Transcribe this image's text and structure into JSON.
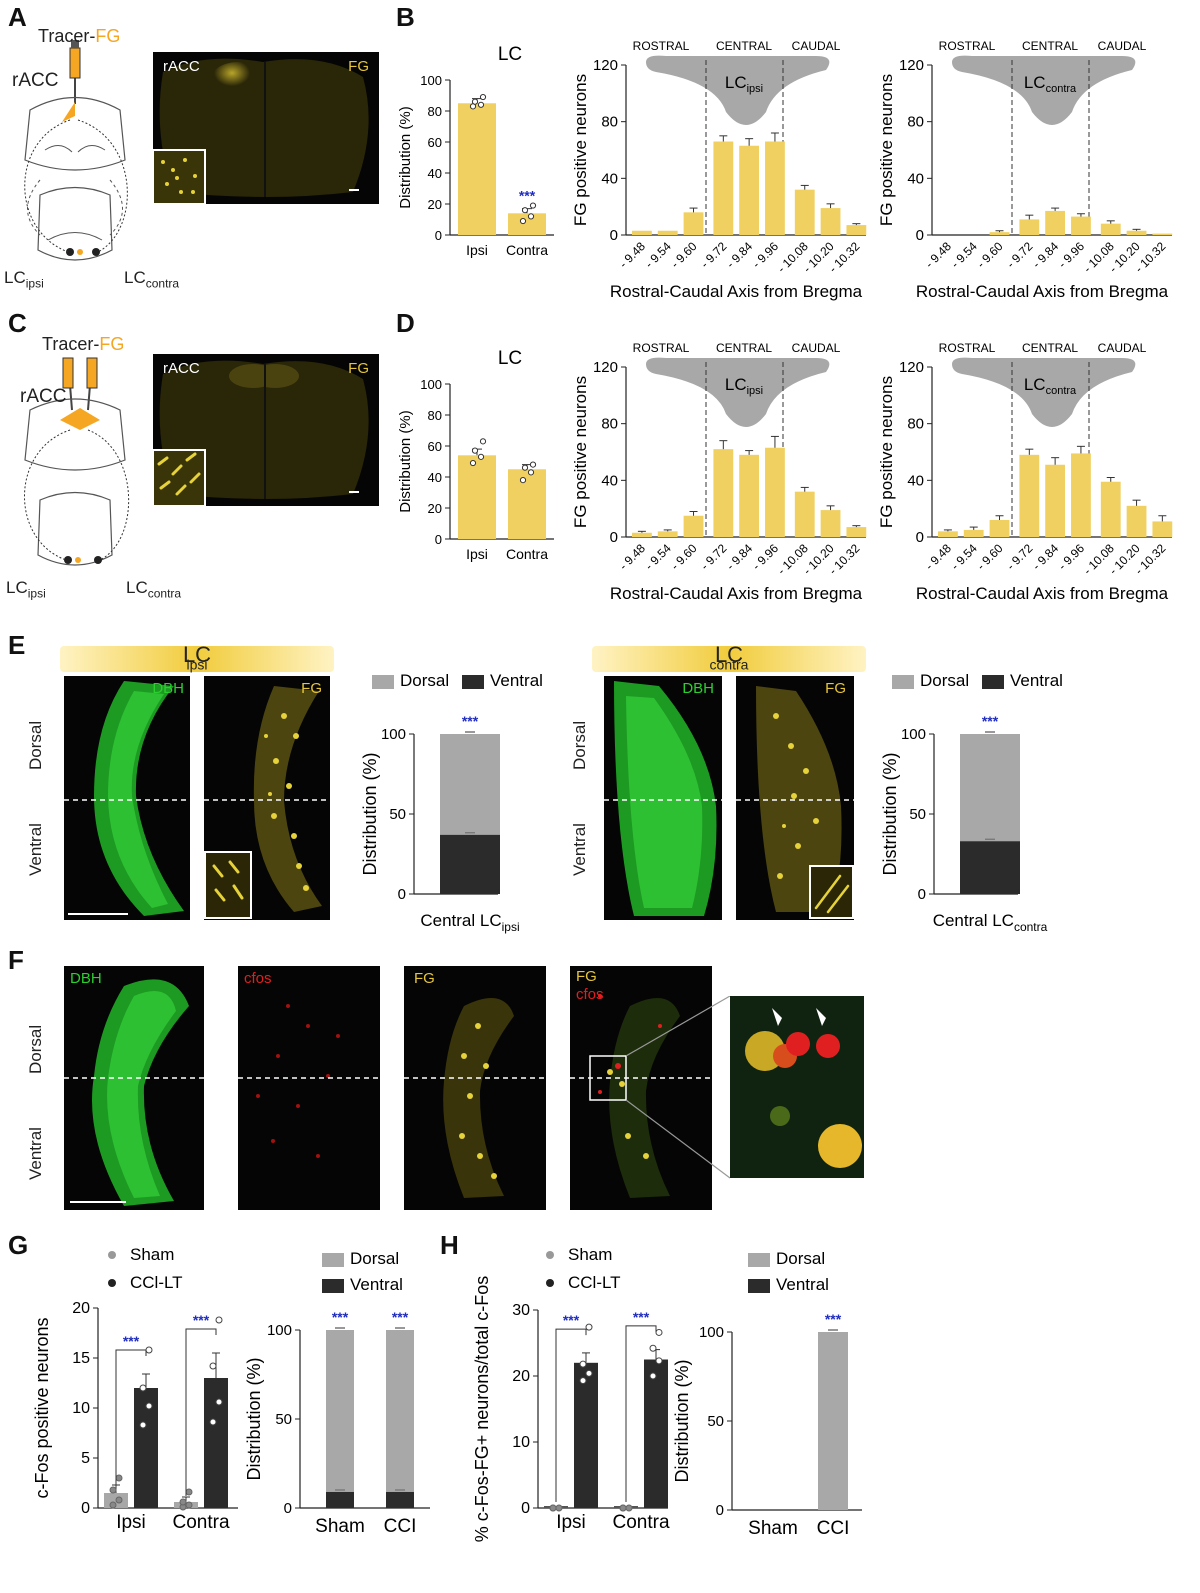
{
  "panels": {
    "A": "A",
    "B": "B",
    "C": "C",
    "D": "D",
    "E": "E",
    "F": "F",
    "G": "G",
    "H": "H"
  },
  "colors": {
    "bar_yellow": "#f0d060",
    "dark": "#2b2b2b",
    "gray": "#a8a8a8",
    "sig_blue": "#1f2cc0",
    "fg_yellow": "#e6d23a",
    "dbh_green": "#27c22a",
    "cfos_red": "#e02020",
    "tracer_orange": "#f5a623"
  },
  "schematic_A": {
    "tracer_word": "Tracer-",
    "tracer_fg": "FG",
    "region": "rACC",
    "lc_ipsi_main": "LC",
    "lc_ipsi_sub": "ipsi",
    "lc_contra_main": "LC",
    "lc_contra_sub": "contra"
  },
  "schematic_C": {
    "tracer_word": "Tracer-",
    "tracer_fg": "FG",
    "region": "rACC",
    "lc_ipsi_main": "LC",
    "lc_ipsi_sub": "ipsi",
    "lc_contra_main": "LC",
    "lc_contra_sub": "contra"
  },
  "micro_A": {
    "left": "rACC",
    "right": "FG"
  },
  "micro_C": {
    "left": "rACC",
    "right": "FG"
  },
  "micro_E": {
    "ipsi_header_main": "LC",
    "ipsi_header_sub": "ipsi",
    "contra_header_main": "LC",
    "contra_header_sub": "contra",
    "dbh": "DBH",
    "fg": "FG",
    "dorsal": "Dorsal",
    "ventral": "Ventral"
  },
  "micro_F": {
    "dbh": "DBH",
    "cfos": "cfos",
    "fg": "FG",
    "merge_fg": "FG",
    "merge_cfos": "cfos",
    "dorsal": "Dorsal",
    "ventral": "Ventral"
  },
  "chart_data": [
    {
      "id": "B_dist",
      "type": "bar",
      "title": "LC",
      "categories": [
        "Ipsi",
        "Contra"
      ],
      "values": [
        85,
        14
      ],
      "errors": [
        3,
        3
      ],
      "points": [
        [
          83,
          84,
          86,
          89
        ],
        [
          9,
          12,
          16,
          19
        ]
      ],
      "ylabel": "Distribution (%)",
      "ylim": [
        0,
        100
      ],
      "yticks": [
        0,
        20,
        40,
        60,
        80,
        100
      ],
      "significance": "***"
    },
    {
      "id": "B_ipsi",
      "type": "bar",
      "categories": [
        "- 9.48",
        "- 9.54",
        "- 9.60",
        "- 9.72",
        "- 9.84",
        "- 9.96",
        "- 10.08",
        "- 10.20",
        "- 10.32"
      ],
      "values": [
        3,
        3,
        16,
        66,
        63,
        66,
        32,
        19,
        7
      ],
      "errors": [
        0,
        0,
        3,
        4,
        5,
        6,
        3,
        3,
        1
      ],
      "ylabel": "FG positive neurons",
      "xlabel": "Rostral-Caudal Axis from Bregma",
      "ylim": [
        0,
        120
      ],
      "yticks": [
        0,
        40,
        80,
        120
      ],
      "regions": [
        "ROSTRAL",
        "CENTRAL",
        "CAUDAL"
      ],
      "lc_main": "LC",
      "lc_sub": "ipsi"
    },
    {
      "id": "B_contra",
      "type": "bar",
      "categories": [
        "- 9.48",
        "- 9.54",
        "- 9.60",
        "- 9.72",
        "- 9.84",
        "- 9.96",
        "- 10.08",
        "- 10.20",
        "- 10.32"
      ],
      "values": [
        0,
        0,
        2,
        11,
        17,
        13,
        8,
        3,
        1
      ],
      "errors": [
        0,
        0,
        1,
        3,
        2,
        2,
        2,
        1,
        0
      ],
      "ylabel": "FG positive neurons",
      "xlabel": "Rostral-Caudal Axis from Bregma",
      "ylim": [
        0,
        120
      ],
      "yticks": [
        0,
        40,
        80,
        120
      ],
      "regions": [
        "ROSTRAL",
        "CENTRAL",
        "CAUDAL"
      ],
      "lc_main": "LC",
      "lc_sub": "contra"
    },
    {
      "id": "D_dist",
      "type": "bar",
      "title": "LC",
      "categories": [
        "Ipsi",
        "Contra"
      ],
      "values": [
        54,
        45
      ],
      "errors": [
        4,
        3
      ],
      "points": [
        [
          49,
          53,
          57,
          63
        ],
        [
          38,
          43,
          46,
          48
        ]
      ],
      "ylabel": "Distribution (%)",
      "ylim": [
        0,
        100
      ],
      "yticks": [
        0,
        20,
        40,
        60,
        80,
        100
      ]
    },
    {
      "id": "D_ipsi",
      "type": "bar",
      "categories": [
        "- 9.48",
        "- 9.54",
        "- 9.60",
        "- 9.72",
        "- 9.84",
        "- 9.96",
        "- 10.08",
        "- 10.20",
        "- 10.32"
      ],
      "values": [
        3,
        4,
        15,
        62,
        58,
        63,
        32,
        19,
        7
      ],
      "errors": [
        1,
        1,
        3,
        6,
        3,
        8,
        3,
        3,
        1
      ],
      "ylabel": "FG positive neurons",
      "xlabel": "Rostral-Caudal Axis from Bregma",
      "ylim": [
        0,
        120
      ],
      "yticks": [
        0,
        40,
        80,
        120
      ],
      "regions": [
        "ROSTRAL",
        "CENTRAL",
        "CAUDAL"
      ],
      "lc_main": "LC",
      "lc_sub": "ipsi"
    },
    {
      "id": "D_contra",
      "type": "bar",
      "categories": [
        "- 9.48",
        "- 9.54",
        "- 9.60",
        "- 9.72",
        "- 9.84",
        "- 9.96",
        "- 10.08",
        "- 10.20",
        "- 10.32"
      ],
      "values": [
        4,
        5,
        12,
        58,
        51,
        59,
        39,
        22,
        11
      ],
      "errors": [
        1,
        2,
        3,
        4,
        5,
        5,
        3,
        4,
        4
      ],
      "ylabel": "FG positive neurons",
      "xlabel": "Rostral-Caudal Axis from Bregma",
      "ylim": [
        0,
        120
      ],
      "yticks": [
        0,
        40,
        80,
        120
      ],
      "regions": [
        "ROSTRAL",
        "CENTRAL",
        "CAUDAL"
      ],
      "lc_main": "LC",
      "lc_sub": "contra"
    },
    {
      "id": "E_ipsi",
      "type": "stacked-bar",
      "categories": [
        "Central LC"
      ],
      "category_sub": "ipsi",
      "series": [
        {
          "name": "Ventral",
          "values": [
            37
          ]
        },
        {
          "name": "Dorsal",
          "values": [
            63
          ]
        }
      ],
      "ylabel": "Distribution (%)",
      "ylim": [
        0,
        100
      ],
      "yticks": [
        0,
        50,
        100
      ],
      "significance": "***"
    },
    {
      "id": "E_contra",
      "type": "stacked-bar",
      "categories": [
        "Central LC"
      ],
      "category_sub": "contra",
      "series": [
        {
          "name": "Ventral",
          "values": [
            33
          ]
        },
        {
          "name": "Dorsal",
          "values": [
            67
          ]
        }
      ],
      "ylabel": "Distribution (%)",
      "ylim": [
        0,
        100
      ],
      "yticks": [
        0,
        50,
        100
      ],
      "significance": "***"
    },
    {
      "id": "G_counts",
      "type": "bar",
      "categories": [
        "Ipsi",
        "Contra"
      ],
      "series": [
        {
          "name": "Sham",
          "values": [
            1.5,
            0.6
          ],
          "errors": [
            0.8,
            0.5
          ],
          "points": [
            [
              0.3,
              0.8,
              1.8,
              3.0
            ],
            [
              0.1,
              0.3,
              0.6,
              1.6
            ]
          ]
        },
        {
          "name": "CCl-LT",
          "values": [
            12,
            13
          ],
          "errors": [
            1.4,
            2.5
          ],
          "points": [
            [
              8.3,
              10.2,
              12.0,
              15.8
            ],
            [
              8.6,
              10.6,
              14.2,
              18.8
            ]
          ]
        }
      ],
      "ylabel": "c-Fos positive neurons",
      "ylim": [
        0,
        20
      ],
      "yticks": [
        0,
        5,
        10,
        15,
        20
      ],
      "significance": "***"
    },
    {
      "id": "G_dist",
      "type": "stacked-bar",
      "categories": [
        "Sham",
        "CCI"
      ],
      "series": [
        {
          "name": "Ventral",
          "values": [
            9,
            9
          ]
        },
        {
          "name": "Dorsal",
          "values": [
            91,
            91
          ]
        }
      ],
      "ylabel": "Distribution (%)",
      "ylim": [
        0,
        100
      ],
      "yticks": [
        0,
        50,
        100
      ],
      "significance": "***"
    },
    {
      "id": "H_pct",
      "type": "bar",
      "categories": [
        "Ipsi",
        "Contra"
      ],
      "series": [
        {
          "name": "Sham",
          "values": [
            0,
            0
          ],
          "errors": [
            0,
            0
          ],
          "points": [
            [
              0,
              0,
              0
            ],
            [
              0,
              0,
              0
            ]
          ]
        },
        {
          "name": "CCl-LT",
          "values": [
            22,
            22.5
          ],
          "errors": [
            1.5,
            1.5
          ],
          "points": [
            [
              19.3,
              20.4,
              21.8,
              27.4
            ],
            [
              20,
              22.3,
              24.2,
              26.6
            ]
          ]
        }
      ],
      "ylabel": "% c-Fos-FG+ neurons/total c-Fos",
      "ylim": [
        0,
        30
      ],
      "yticks": [
        0,
        10,
        20,
        30
      ],
      "significance": "***"
    },
    {
      "id": "H_dist",
      "type": "stacked-bar",
      "categories": [
        "Sham",
        "CCI"
      ],
      "series": [
        {
          "name": "Ventral",
          "values": [
            0,
            0
          ]
        },
        {
          "name": "Dorsal",
          "values": [
            0,
            100
          ]
        }
      ],
      "ylabel": "Distribution (%)",
      "ylim": [
        0,
        100
      ],
      "yticks": [
        0,
        50,
        100
      ],
      "significance": "***"
    }
  ],
  "legends": {
    "dorsal": "Dorsal",
    "ventral": "Ventral",
    "sham": "Sham",
    "ccl": "CCl-LT"
  }
}
